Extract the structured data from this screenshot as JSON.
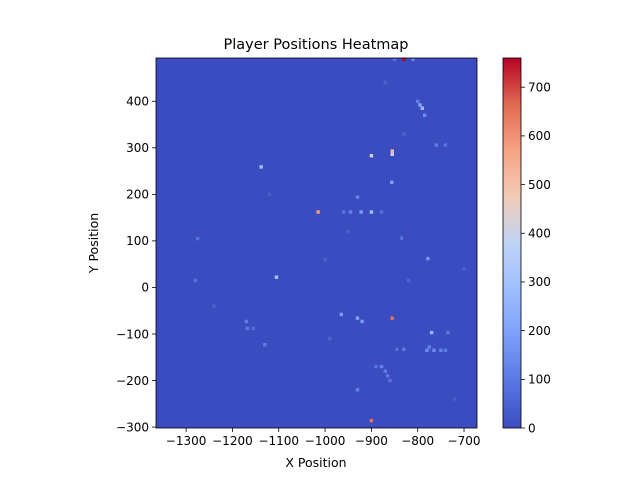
{
  "chart_data": {
    "type": "heatmap",
    "title": "Player Positions Heatmap",
    "xlabel": "X Position",
    "ylabel": "Y Position",
    "xlim": [
      -1365,
      -672
    ],
    "ylim": [
      -302,
      493
    ],
    "xticks": [
      -1300,
      -1200,
      -1100,
      -1000,
      -900,
      -800,
      -700
    ],
    "yticks": [
      -300,
      -200,
      -100,
      0,
      100,
      200,
      300,
      400
    ],
    "colorbar": {
      "range": [
        0,
        760
      ],
      "ticks": [
        0,
        100,
        200,
        300,
        400,
        500,
        600,
        700
      ],
      "colormap": "coolwarm"
    },
    "background_value": 0,
    "cells": [
      {
        "x": -830,
        "y": 490,
        "value": 760
      },
      {
        "x": -810,
        "y": 490,
        "value": 120
      },
      {
        "x": -850,
        "y": 490,
        "value": 80
      },
      {
        "x": -1015,
        "y": 162,
        "value": 580
      },
      {
        "x": -900,
        "y": 162,
        "value": 300
      },
      {
        "x": -922,
        "y": 162,
        "value": 180
      },
      {
        "x": -945,
        "y": 162,
        "value": 120
      },
      {
        "x": -960,
        "y": 162,
        "value": 90
      },
      {
        "x": -878,
        "y": 162,
        "value": 80
      },
      {
        "x": -900,
        "y": 283,
        "value": 420
      },
      {
        "x": -855,
        "y": 293,
        "value": 520
      },
      {
        "x": -855,
        "y": 286,
        "value": 380
      },
      {
        "x": -1138,
        "y": 259,
        "value": 300
      },
      {
        "x": -1105,
        "y": 22,
        "value": 320
      },
      {
        "x": -855,
        "y": -66,
        "value": 650
      },
      {
        "x": -900,
        "y": -286,
        "value": 650
      },
      {
        "x": -790,
        "y": 385,
        "value": 280
      },
      {
        "x": -795,
        "y": 392,
        "value": 220
      },
      {
        "x": -785,
        "y": 370,
        "value": 150
      },
      {
        "x": -800,
        "y": 400,
        "value": 120
      },
      {
        "x": -760,
        "y": 306,
        "value": 110
      },
      {
        "x": -740,
        "y": 306,
        "value": 90
      },
      {
        "x": -856,
        "y": 226,
        "value": 200
      },
      {
        "x": -930,
        "y": 194,
        "value": 130
      },
      {
        "x": -835,
        "y": 106,
        "value": 90
      },
      {
        "x": -778,
        "y": 62,
        "value": 170
      },
      {
        "x": -1275,
        "y": 105,
        "value": 90
      },
      {
        "x": -1280,
        "y": 15,
        "value": 80
      },
      {
        "x": -965,
        "y": -58,
        "value": 180
      },
      {
        "x": -930,
        "y": -66,
        "value": 200
      },
      {
        "x": -920,
        "y": -73,
        "value": 180
      },
      {
        "x": -770,
        "y": -97,
        "value": 250
      },
      {
        "x": -780,
        "y": -135,
        "value": 150
      },
      {
        "x": -765,
        "y": -135,
        "value": 140
      },
      {
        "x": -750,
        "y": -135,
        "value": 130
      },
      {
        "x": -740,
        "y": -135,
        "value": 110
      },
      {
        "x": -775,
        "y": -128,
        "value": 120
      },
      {
        "x": -735,
        "y": -97,
        "value": 100
      },
      {
        "x": -1170,
        "y": -73,
        "value": 110
      },
      {
        "x": -1168,
        "y": -88,
        "value": 100
      },
      {
        "x": -1155,
        "y": -88,
        "value": 80
      },
      {
        "x": -1130,
        "y": -123,
        "value": 110
      },
      {
        "x": -878,
        "y": -170,
        "value": 120
      },
      {
        "x": -870,
        "y": -180,
        "value": 110
      },
      {
        "x": -865,
        "y": -190,
        "value": 100
      },
      {
        "x": -860,
        "y": -200,
        "value": 90
      },
      {
        "x": -890,
        "y": -170,
        "value": 90
      },
      {
        "x": -930,
        "y": -220,
        "value": 120
      },
      {
        "x": -830,
        "y": -133,
        "value": 110
      },
      {
        "x": -845,
        "y": -133,
        "value": 80
      },
      {
        "x": -820,
        "y": 15,
        "value": 60
      },
      {
        "x": -1000,
        "y": 60,
        "value": 50
      },
      {
        "x": -950,
        "y": 120,
        "value": 50
      },
      {
        "x": -870,
        "y": 440,
        "value": 50
      },
      {
        "x": -830,
        "y": 330,
        "value": 50
      },
      {
        "x": -1240,
        "y": -40,
        "value": 45
      },
      {
        "x": -990,
        "y": -110,
        "value": 55
      },
      {
        "x": -700,
        "y": 40,
        "value": 45
      },
      {
        "x": -720,
        "y": -240,
        "value": 40
      },
      {
        "x": -1120,
        "y": 200,
        "value": 40
      }
    ]
  }
}
